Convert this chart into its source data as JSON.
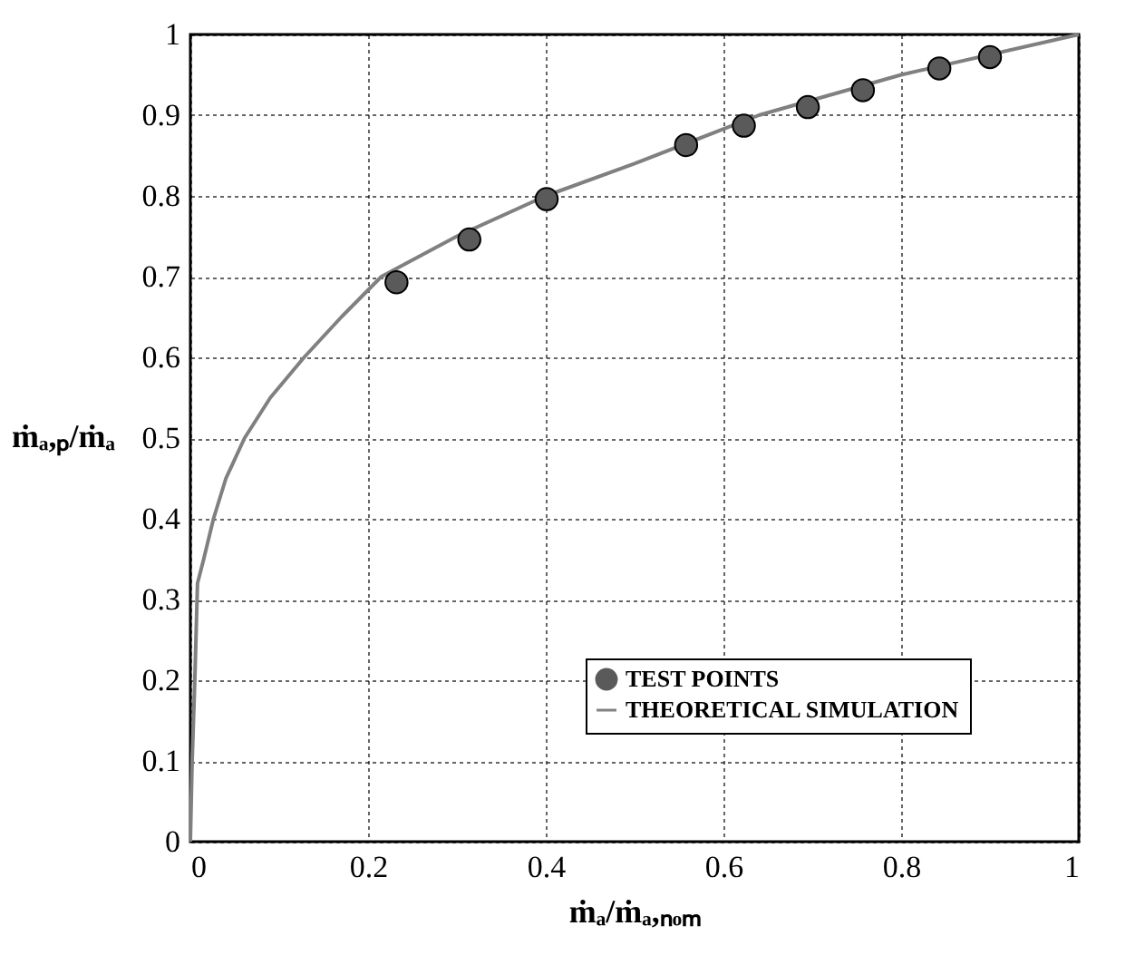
{
  "chart_data": {
    "type": "scatter",
    "xlabel": "ṁₐ/ṁₐ,ₙₒₘ",
    "ylabel": "ṁₐ,ₚ/ṁₐ",
    "xlim": [
      0,
      1
    ],
    "ylim": [
      0,
      1
    ],
    "xticks": [
      0,
      0.2,
      0.4,
      0.6,
      0.8,
      1
    ],
    "yticks": [
      0,
      0.1,
      0.2,
      0.3,
      0.4,
      0.5,
      0.6,
      0.7,
      0.8,
      0.9,
      1
    ],
    "grid": true,
    "legend": "bottom right",
    "series": [
      {
        "name": "TEST POINTS",
        "marker": "circle",
        "color": "#5a5a5a",
        "x": [
          0.232,
          0.314,
          0.401,
          0.558,
          0.623,
          0.695,
          0.757,
          0.843,
          0.9
        ],
        "values": [
          0.693,
          0.746,
          0.796,
          0.863,
          0.887,
          0.91,
          0.931,
          0.958,
          0.972
        ]
      },
      {
        "name": "THEORETICAL SIMULATION",
        "type": "line",
        "marker": "none",
        "color": "#808080",
        "x": [
          0,
          0.002,
          0.005,
          0.008,
          0.015,
          0.026,
          0.04,
          0.061,
          0.09,
          0.128,
          0.17,
          0.215,
          0.3,
          0.4,
          0.5,
          0.64,
          0.8,
          1
        ],
        "values": [
          0,
          0.1,
          0.2,
          0.32,
          0.35,
          0.4,
          0.45,
          0.5,
          0.55,
          0.6,
          0.65,
          0.7,
          0.75,
          0.8,
          0.84,
          0.9,
          0.95,
          1
        ]
      }
    ]
  }
}
